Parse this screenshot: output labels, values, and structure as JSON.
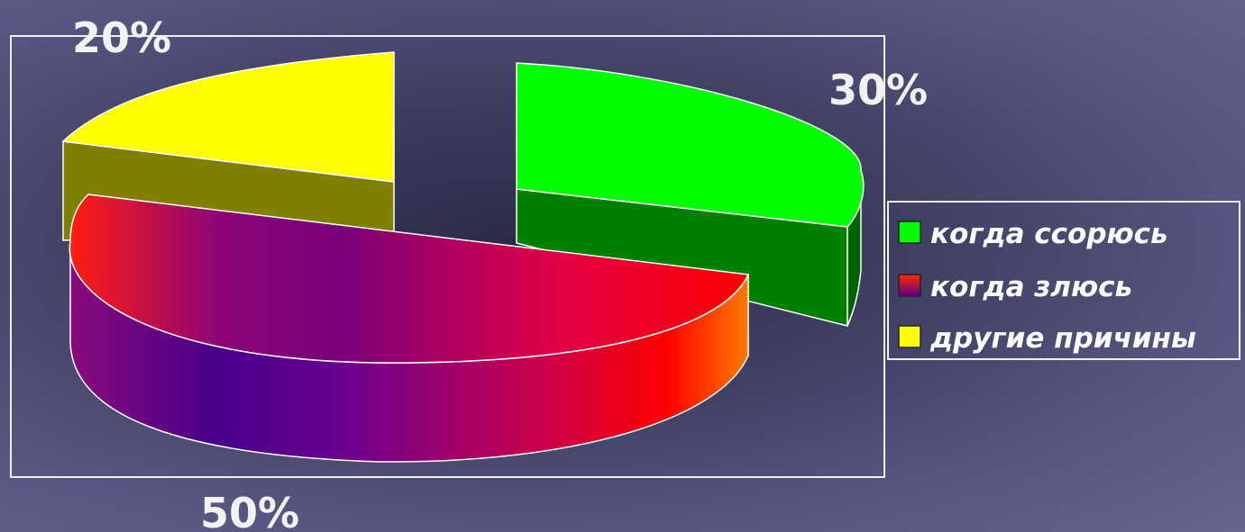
{
  "chart_data": {
    "type": "pie",
    "style": "3d-exploded",
    "categories": [
      "когда ссорюсь",
      "когда злюсь",
      "другие причины"
    ],
    "values": [
      30,
      50,
      20
    ],
    "labels": [
      "30%",
      "50%",
      "20%"
    ],
    "colors": [
      "#00ff00",
      "#ff0000",
      "#ffff00"
    ],
    "legend_position": "right"
  }
}
